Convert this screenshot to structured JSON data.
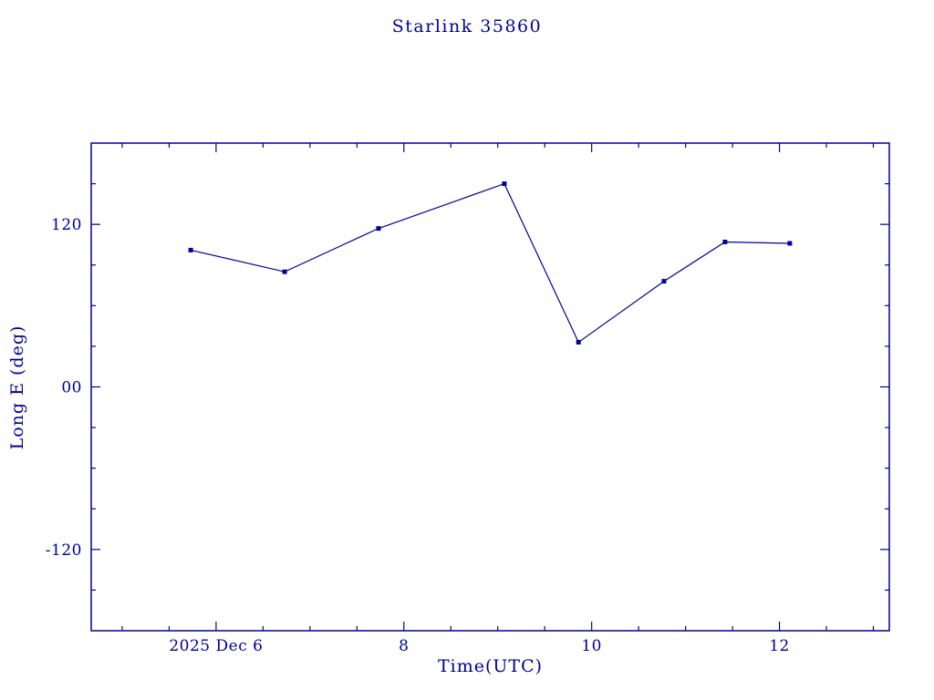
{
  "chart_data": {
    "type": "line",
    "title": "Starlink 35860",
    "xlabel": "Time(UTC)",
    "ylabel": "Long E (deg)",
    "x": [
      5.73,
      6.73,
      7.73,
      9.07,
      9.86,
      10.77,
      11.42,
      12.11
    ],
    "y": [
      101,
      85,
      117,
      150,
      33,
      78,
      107,
      106
    ],
    "xlim": [
      4.67,
      13.17
    ],
    "ylim": [
      -180,
      180
    ],
    "x_major_ticks": [
      6,
      8,
      10,
      12
    ],
    "x_tick_labels": [
      "2025 Dec 6",
      "8",
      "10",
      "12"
    ],
    "x_minor_step": 0.5,
    "y_major_ticks": [
      -120,
      0,
      120
    ],
    "y_tick_labels": [
      "-120",
      "00",
      "120"
    ],
    "y_minor_step": 30,
    "line_color": "#000099",
    "marker": "square",
    "background": "#ffffff",
    "legend": "none",
    "grid": "off"
  }
}
